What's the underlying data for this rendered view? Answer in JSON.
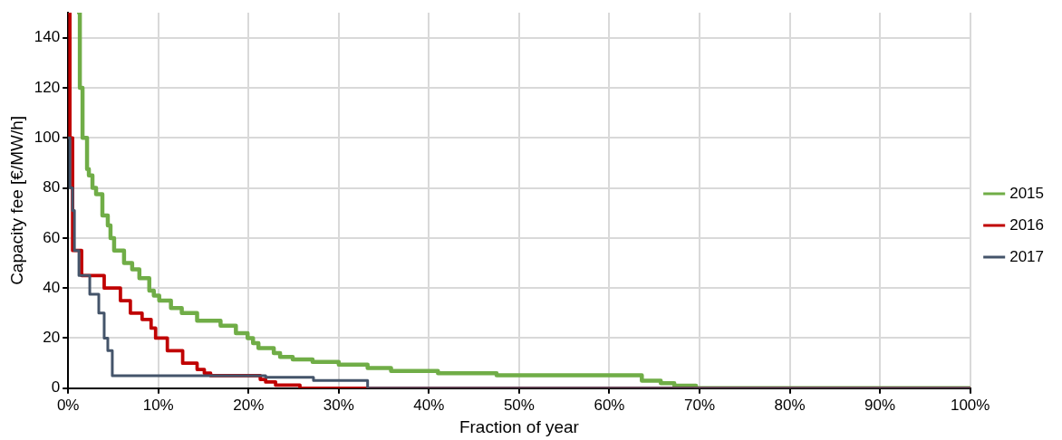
{
  "chart_data": {
    "type": "step",
    "xlabel": "Fraction of year",
    "ylabel": "Capacity fee [€/MW/h]",
    "xlim": [
      0,
      100
    ],
    "ylim": [
      0,
      150
    ],
    "xticks": [
      {
        "value": 0,
        "label": "0%"
      },
      {
        "value": 10,
        "label": "10%"
      },
      {
        "value": 20,
        "label": "20%"
      },
      {
        "value": 30,
        "label": "30%"
      },
      {
        "value": 40,
        "label": "40%"
      },
      {
        "value": 50,
        "label": "50%"
      },
      {
        "value": 60,
        "label": "60%"
      },
      {
        "value": 70,
        "label": "70%"
      },
      {
        "value": 80,
        "label": "80%"
      },
      {
        "value": 90,
        "label": "90%"
      },
      {
        "value": 100,
        "label": "100%"
      }
    ],
    "yticks": [
      0,
      20,
      40,
      60,
      80,
      100,
      120,
      140
    ],
    "grid": true,
    "legend": "right",
    "marker": "none",
    "line_style": "solid",
    "series": [
      {
        "name": "2015",
        "color": "#70ad47",
        "x": [
          1.2,
          1.3,
          1.6,
          2.1,
          2.3,
          2.7,
          3.1,
          3.8,
          4.4,
          4.7,
          5.1,
          6.2,
          7.1,
          7.9,
          9.0,
          9.5,
          10.1,
          11.4,
          12.6,
          14.3,
          16.9,
          18.6,
          19.9,
          20.5,
          21.1,
          22.8,
          23.5,
          24.9,
          27.1,
          30,
          33.2,
          35.8,
          41,
          47.5,
          63.6,
          65.7,
          67.2,
          69.6,
          100
        ],
        "values": [
          150,
          120,
          100,
          87.5,
          85,
          80,
          77.5,
          69,
          65,
          60,
          55,
          50,
          47.5,
          44,
          39,
          37,
          35,
          32,
          30,
          27,
          25,
          22,
          20,
          18,
          16,
          14,
          12.5,
          11.5,
          10.5,
          9.4,
          8.1,
          6.9,
          6,
          5.2,
          3,
          2,
          1,
          0,
          0
        ]
      },
      {
        "name": "2016",
        "color": "#c00000",
        "x": [
          0,
          0.2,
          0.5,
          1.5,
          4.0,
          5.8,
          6.9,
          8.2,
          9.2,
          9.7,
          11,
          12.7,
          14.3,
          15.1,
          15.8,
          21.3,
          21.9,
          23,
          25.7,
          100
        ],
        "values": [
          150,
          100,
          55,
          45,
          40,
          35,
          30,
          27.5,
          24,
          20,
          15,
          10,
          7.5,
          6,
          5,
          3.5,
          2.5,
          1.2,
          0,
          0
        ]
      },
      {
        "name": "2017",
        "color": "#44546a",
        "x": [
          0,
          0.2,
          0.5,
          0.7,
          1.2,
          2.4,
          3.4,
          4.0,
          4.4,
          4.9,
          21.9,
          27.2,
          33.2,
          100
        ],
        "values": [
          100,
          80,
          71,
          55,
          45,
          37.5,
          30,
          20,
          15,
          5,
          4.4,
          3.1,
          0,
          0
        ]
      }
    ]
  }
}
